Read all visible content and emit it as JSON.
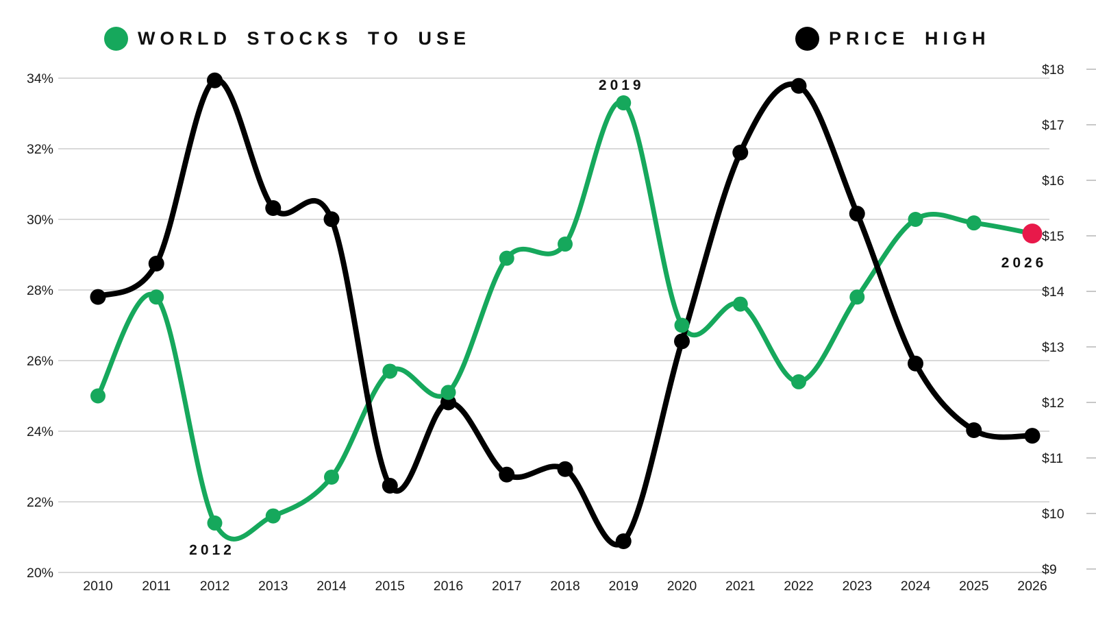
{
  "legend": {
    "items": [
      {
        "label": "WORLD STOCKS TO USE",
        "color": "#16a85c"
      },
      {
        "label": "PRICE HIGH",
        "color": "#000000"
      }
    ]
  },
  "axes": {
    "left": {
      "tick_labels": [
        "34%",
        "32%",
        "30%",
        "28%",
        "26%",
        "24%",
        "22%",
        "20%"
      ],
      "tick_values": [
        34,
        32,
        30,
        28,
        26,
        24,
        22,
        20
      ]
    },
    "right": {
      "tick_labels": [
        "$18",
        "$17",
        "$16",
        "$15",
        "$14",
        "$13",
        "$12",
        "$11",
        "$10",
        "$9"
      ],
      "tick_values": [
        18,
        17,
        16,
        15,
        14,
        13,
        12,
        11,
        10,
        9
      ]
    },
    "x": {
      "tick_labels": [
        "2010",
        "2011",
        "2012",
        "2013",
        "2014",
        "2015",
        "2016",
        "2017",
        "2018",
        "2019",
        "2020",
        "2021",
        "2022",
        "2023",
        "2024",
        "2025",
        "2026"
      ]
    }
  },
  "annotations": [
    {
      "text": "2012",
      "year": 2012,
      "series": "world-stocks-to-use",
      "placement": "below"
    },
    {
      "text": "2019",
      "year": 2019,
      "series": "world-stocks-to-use",
      "placement": "above"
    },
    {
      "text": "2026",
      "year": 2026,
      "series": "world-stocks-to-use",
      "placement": "below"
    }
  ],
  "chart_data": {
    "type": "line",
    "x": [
      2010,
      2011,
      2012,
      2013,
      2014,
      2015,
      2016,
      2017,
      2018,
      2019,
      2020,
      2021,
      2022,
      2023,
      2024,
      2025,
      2026
    ],
    "series": [
      {
        "name": "WORLD STOCKS TO USE",
        "axis": "left",
        "unit": "percent",
        "color": "#16a85c",
        "values": [
          25.0,
          27.8,
          21.4,
          21.6,
          22.7,
          25.7,
          25.1,
          28.9,
          29.3,
          33.3,
          27.0,
          27.6,
          25.4,
          27.8,
          30.0,
          29.9,
          29.6
        ],
        "last_point_color": "#e8194a"
      },
      {
        "name": "PRICE HIGH",
        "axis": "right",
        "unit": "usd",
        "color": "#000000",
        "values": [
          13.9,
          14.5,
          17.8,
          15.5,
          15.3,
          10.5,
          12.0,
          10.7,
          10.8,
          9.5,
          13.1,
          16.5,
          17.7,
          15.4,
          12.7,
          11.5,
          11.4
        ]
      }
    ],
    "left_axis_range": [
      20,
      34
    ],
    "right_axis_range": [
      9,
      18
    ],
    "grid": "horizontal",
    "legend_position": "top",
    "title": ""
  },
  "colors": {
    "background": "#ffffff",
    "gridline": "#d9d9d9",
    "right_tick_dash": "#c8c8c8",
    "tick_text": "#1a1a1a",
    "annotation_text": "#111111"
  }
}
